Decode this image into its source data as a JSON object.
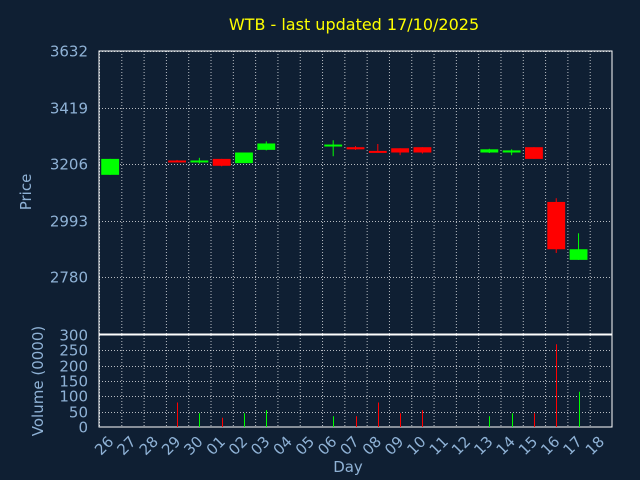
{
  "chart_data": {
    "type": "candlestick",
    "title": "WTB - last updated 17/10/2025",
    "xlabel": "Day",
    "price_panel": {
      "ylabel": "Price",
      "yticks": [
        2780,
        2993,
        3206,
        3419,
        3632
      ],
      "ylim": [
        2567,
        3632
      ]
    },
    "volume_panel": {
      "ylabel": "Volume (0000)",
      "yticks": [
        0,
        50,
        100,
        150,
        200,
        250,
        300
      ],
      "ylim": [
        0,
        300
      ]
    },
    "x_ticks": [
      "26",
      "27",
      "28",
      "29",
      "30",
      "01",
      "02",
      "03",
      "04",
      "05",
      "06",
      "07",
      "08",
      "09",
      "10",
      "11",
      "12",
      "13",
      "14",
      "15",
      "16",
      "17",
      "18"
    ],
    "colors": {
      "up": "#00ff00",
      "down": "#ff0000",
      "background": "#0f1f33",
      "grid": "#ffffff",
      "axis_text": "#8fb2d6",
      "title": "#ffff00"
    },
    "candles": [
      {
        "slot": 0,
        "open": 3166,
        "close": 3226,
        "high": 3226,
        "low": 3166,
        "volume": 0
      },
      {
        "slot": 3,
        "open": 3220,
        "close": 3216,
        "high": 3222,
        "low": 3216,
        "volume": 80
      },
      {
        "slot": 4,
        "open": 3216,
        "close": 3220,
        "high": 3230,
        "low": 3208,
        "volume": 45
      },
      {
        "slot": 5,
        "open": 3226,
        "close": 3200,
        "high": 3226,
        "low": 3198,
        "volume": 30
      },
      {
        "slot": 6,
        "open": 3210,
        "close": 3250,
        "high": 3250,
        "low": 3210,
        "volume": 45
      },
      {
        "slot": 7,
        "open": 3260,
        "close": 3284,
        "high": 3292,
        "low": 3258,
        "volume": 55
      },
      {
        "slot": 10,
        "open": 3276,
        "close": 3280,
        "high": 3296,
        "low": 3236,
        "volume": 35
      },
      {
        "slot": 11,
        "open": 3270,
        "close": 3262,
        "high": 3274,
        "low": 3260,
        "volume": 35
      },
      {
        "slot": 12,
        "open": 3256,
        "close": 3252,
        "high": 3282,
        "low": 3250,
        "volume": 80
      },
      {
        "slot": 13,
        "open": 3266,
        "close": 3250,
        "high": 3266,
        "low": 3240,
        "volume": 45
      },
      {
        "slot": 14,
        "open": 3270,
        "close": 3250,
        "high": 3270,
        "low": 3246,
        "volume": 55
      },
      {
        "slot": 17,
        "open": 3250,
        "close": 3262,
        "high": 3264,
        "low": 3248,
        "volume": 35
      },
      {
        "slot": 18,
        "open": 3250,
        "close": 3258,
        "high": 3262,
        "low": 3240,
        "volume": 45
      },
      {
        "slot": 19,
        "open": 3270,
        "close": 3226,
        "high": 3270,
        "low": 3226,
        "volume": 45
      },
      {
        "slot": 20,
        "open": 3064,
        "close": 2886,
        "high": 3078,
        "low": 2872,
        "volume": 270
      },
      {
        "slot": 21,
        "open": 2846,
        "close": 2886,
        "high": 2946,
        "low": 2846,
        "volume": 115
      }
    ]
  }
}
